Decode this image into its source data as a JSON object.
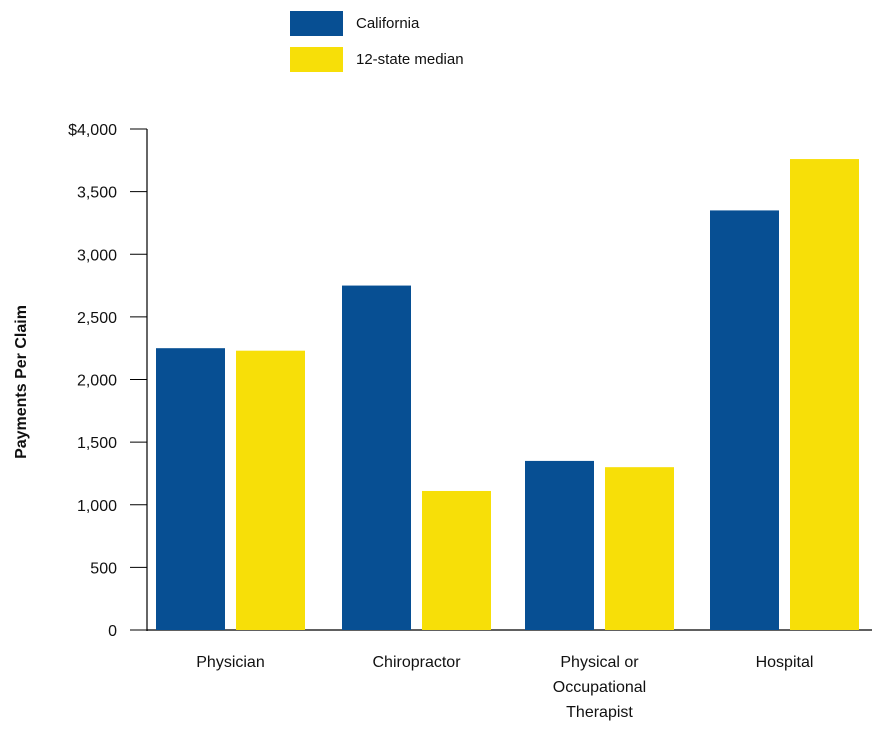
{
  "legend": {
    "california": "California",
    "median": "12-state median"
  },
  "colors": {
    "california": "#074f93",
    "median": "#f7df08"
  },
  "chart_data": {
    "type": "bar",
    "ylabel": "Payments Per Claim",
    "ylim": [
      0,
      4000
    ],
    "yticks": [
      "0",
      "500",
      "1,000",
      "1,500",
      "2,000",
      "2,500",
      "3,000",
      "3,500",
      "$4,000"
    ],
    "categories": [
      [
        "Physician"
      ],
      [
        "Chiropractor"
      ],
      [
        "Physical or",
        "Occupational",
        "Therapist"
      ],
      [
        "Hospital"
      ]
    ],
    "series": [
      {
        "name": "California",
        "values": [
          2250,
          2750,
          1350,
          3350
        ]
      },
      {
        "name": "12-state median",
        "values": [
          2230,
          1110,
          1300,
          3760
        ]
      }
    ],
    "grid": false,
    "legend_position": "top"
  }
}
